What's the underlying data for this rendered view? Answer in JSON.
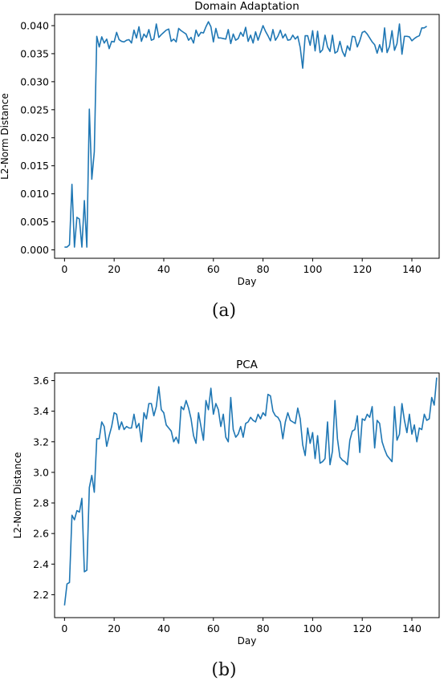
{
  "chart_data": [
    {
      "type": "line",
      "title": "Domain Adaptation",
      "xlabel": "Day",
      "ylabel": "L2-Norm Distance",
      "xlim": [
        -4,
        151
      ],
      "ylim": [
        -0.0015,
        0.042
      ],
      "xticks": [
        0,
        20,
        40,
        60,
        80,
        100,
        120,
        140
      ],
      "xtick_labels": [
        "0",
        "20",
        "40",
        "60",
        "80",
        "100",
        "120",
        "140"
      ],
      "yticks": [
        0.0,
        0.005,
        0.01,
        0.015,
        0.02,
        0.025,
        0.03,
        0.035,
        0.04
      ],
      "ytick_labels": [
        "0.000",
        "0.005",
        "0.010",
        "0.015",
        "0.020",
        "0.025",
        "0.030",
        "0.035",
        "0.040"
      ],
      "grid": false,
      "color": "#1f77b4",
      "series": [
        {
          "x_start": 0,
          "values": [
            0.0005,
            0.0005,
            0.0009,
            0.0117,
            0.0005,
            0.0058,
            0.0055,
            0.0005,
            0.0088,
            0.0005,
            0.0251,
            0.0126,
            0.0175,
            0.0381,
            0.0362,
            0.038,
            0.0369,
            0.0376,
            0.0359,
            0.0372,
            0.0371,
            0.0388,
            0.0375,
            0.0372,
            0.0371,
            0.0374,
            0.0375,
            0.0369,
            0.0392,
            0.0378,
            0.0398,
            0.0372,
            0.0385,
            0.0379,
            0.0393,
            0.0374,
            0.0376,
            0.0403,
            0.0379,
            0.0384,
            0.0388,
            0.0392,
            0.0394,
            0.0372,
            0.0376,
            0.0371,
            0.0395,
            0.0391,
            0.0388,
            0.0385,
            0.0374,
            0.0379,
            0.0369,
            0.0392,
            0.0381,
            0.0388,
            0.0387,
            0.0398,
            0.0407,
            0.0398,
            0.0371,
            0.0395,
            0.0378,
            0.0378,
            0.0377,
            0.0376,
            0.0393,
            0.0368,
            0.0385,
            0.0374,
            0.0377,
            0.0388,
            0.0381,
            0.0397,
            0.0372,
            0.0383,
            0.0369,
            0.0389,
            0.0374,
            0.0387,
            0.04,
            0.039,
            0.0382,
            0.0373,
            0.0393,
            0.0374,
            0.0381,
            0.0392,
            0.0378,
            0.0385,
            0.0374,
            0.0375,
            0.0383,
            0.0376,
            0.0381,
            0.0361,
            0.0324,
            0.0382,
            0.0382,
            0.0365,
            0.0391,
            0.0355,
            0.039,
            0.0352,
            0.0357,
            0.0383,
            0.0362,
            0.0354,
            0.0383,
            0.0351,
            0.0354,
            0.0372,
            0.0354,
            0.0345,
            0.0364,
            0.0356,
            0.0381,
            0.038,
            0.0362,
            0.0373,
            0.0388,
            0.039,
            0.0385,
            0.0378,
            0.0371,
            0.0366,
            0.0351,
            0.0366,
            0.0353,
            0.0396,
            0.0352,
            0.0363,
            0.0391,
            0.0356,
            0.0368,
            0.0403,
            0.0349,
            0.0381,
            0.0381,
            0.038,
            0.0373,
            0.0377,
            0.038,
            0.0382,
            0.0396,
            0.0396,
            0.0399
          ]
        }
      ]
    },
    {
      "type": "line",
      "title": "PCA",
      "xlabel": "Day",
      "ylabel": "L2-Norm Distance",
      "xlim": [
        -4,
        151
      ],
      "ylim": [
        2.05,
        3.65
      ],
      "xticks": [
        0,
        20,
        40,
        60,
        80,
        100,
        120,
        140
      ],
      "xtick_labels": [
        "0",
        "20",
        "40",
        "60",
        "80",
        "100",
        "120",
        "140"
      ],
      "yticks": [
        2.2,
        2.4,
        2.6,
        2.8,
        3.0,
        3.2,
        3.4,
        3.6
      ],
      "ytick_labels": [
        "2.2",
        "2.4",
        "2.6",
        "2.8",
        "3.0",
        "3.2",
        "3.4",
        "3.6"
      ],
      "grid": false,
      "color": "#1f77b4",
      "series": [
        {
          "x_start": 0,
          "values": [
            2.13,
            2.27,
            2.28,
            2.72,
            2.69,
            2.75,
            2.74,
            2.83,
            2.35,
            2.36,
            2.9,
            2.98,
            2.87,
            3.22,
            3.22,
            3.33,
            3.3,
            3.17,
            3.24,
            3.3,
            3.39,
            3.38,
            3.28,
            3.33,
            3.28,
            3.3,
            3.29,
            3.29,
            3.38,
            3.29,
            3.32,
            3.2,
            3.39,
            3.35,
            3.45,
            3.45,
            3.37,
            3.43,
            3.56,
            3.41,
            3.39,
            3.31,
            3.29,
            3.27,
            3.2,
            3.23,
            3.19,
            3.43,
            3.41,
            3.47,
            3.42,
            3.35,
            3.24,
            3.19,
            3.39,
            3.3,
            3.21,
            3.47,
            3.41,
            3.55,
            3.38,
            3.45,
            3.41,
            3.3,
            3.38,
            3.23,
            3.2,
            3.49,
            3.28,
            3.23,
            3.25,
            3.3,
            3.23,
            3.32,
            3.33,
            3.36,
            3.34,
            3.33,
            3.38,
            3.35,
            3.39,
            3.37,
            3.51,
            3.5,
            3.4,
            3.37,
            3.36,
            3.33,
            3.22,
            3.33,
            3.39,
            3.34,
            3.33,
            3.32,
            3.42,
            3.35,
            3.18,
            3.11,
            3.29,
            3.19,
            3.26,
            3.09,
            3.24,
            3.06,
            3.07,
            3.09,
            3.33,
            3.05,
            3.14,
            3.47,
            3.22,
            3.1,
            3.08,
            3.07,
            3.05,
            3.21,
            3.27,
            3.28,
            3.37,
            3.13,
            3.35,
            3.34,
            3.38,
            3.36,
            3.43,
            3.16,
            3.34,
            3.32,
            3.2,
            3.15,
            3.11,
            3.09,
            3.07,
            3.43,
            3.21,
            3.25,
            3.45,
            3.34,
            3.26,
            3.38,
            3.25,
            3.31,
            3.2,
            3.29,
            3.28,
            3.38,
            3.34,
            3.35,
            3.49,
            3.44,
            3.62
          ]
        }
      ]
    }
  ],
  "captions": {
    "a": "(a)",
    "b": "(b)"
  }
}
